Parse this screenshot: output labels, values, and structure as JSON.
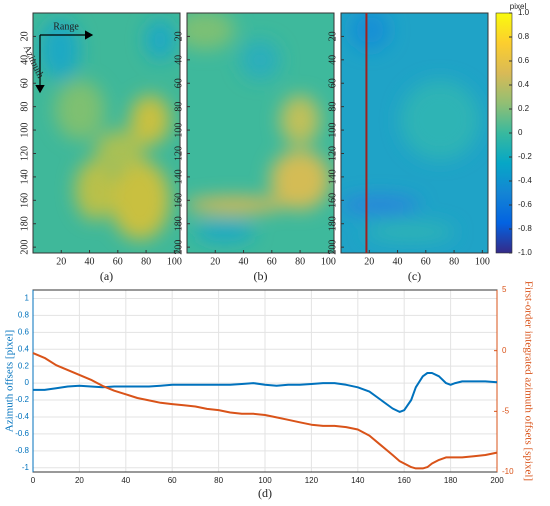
{
  "chart_data": [
    {
      "type": "heatmap",
      "caption": "(a)",
      "annotations": [
        "Range",
        "Azimuth"
      ],
      "xlim": [
        0,
        104
      ],
      "xticks": [
        20,
        40,
        60,
        80,
        100
      ],
      "ylim": [
        0,
        205
      ],
      "yticks": [
        20,
        40,
        60,
        80,
        100,
        120,
        140,
        160,
        180,
        200
      ]
    },
    {
      "type": "heatmap",
      "caption": "(b)",
      "xlim": [
        0,
        104
      ],
      "xticks": [
        20,
        40,
        60,
        80,
        100
      ],
      "ylim": [
        0,
        205
      ],
      "yticks": [
        20,
        40,
        60,
        80,
        100,
        120,
        140,
        160,
        180,
        200
      ]
    },
    {
      "type": "heatmap",
      "caption": "(c)",
      "marker_x": 18,
      "marker_color": "#a0201c",
      "xlim": [
        0,
        104
      ],
      "xticks": [
        20,
        40,
        60,
        80,
        100
      ],
      "ylim": [
        0,
        205
      ],
      "yticks": [
        20,
        40,
        60,
        80,
        100,
        120,
        140,
        160,
        180,
        200
      ]
    },
    {
      "type": "colorbar",
      "title": "pixel",
      "ylim": [
        -1,
        1
      ],
      "yticks": [
        {
          "value": 1,
          "label": "1.0"
        },
        0.8,
        0.6,
        0.4,
        0.2,
        0,
        -0.2,
        -0.4,
        -0.6,
        -0.8,
        {
          "value": -1,
          "label": "-1.0"
        }
      ]
    },
    {
      "type": "line",
      "caption": "(d)",
      "ylabel": "Azimuth offsets [pixel]",
      "y2label": "First-order integrated azimuth offsets [spixel]",
      "grid": true,
      "xlim": [
        0,
        200
      ],
      "xticks": [
        0,
        20,
        40,
        60,
        80,
        100,
        120,
        140,
        160,
        180,
        200
      ],
      "ylim": [
        -1.05,
        1.1
      ],
      "yticks": [
        1,
        0.8,
        0.6,
        0.4,
        0.2,
        0,
        -0.2,
        -0.4,
        -0.6,
        -0.8,
        -1
      ],
      "y2lim": [
        -10,
        5
      ],
      "y2ticks": [
        5,
        0,
        -5,
        -10
      ],
      "x": [
        0,
        5,
        10,
        15,
        20,
        25,
        30,
        35,
        40,
        45,
        50,
        55,
        60,
        65,
        70,
        75,
        80,
        85,
        90,
        95,
        100,
        105,
        110,
        115,
        120,
        125,
        130,
        135,
        140,
        145,
        150,
        155,
        158,
        160,
        163,
        165,
        168,
        170,
        172,
        175,
        178,
        180,
        182,
        185,
        190,
        195,
        200
      ],
      "series": [
        {
          "name": "Azimuth offsets",
          "color": "#0072bd",
          "values": [
            -0.08,
            -0.08,
            -0.06,
            -0.04,
            -0.03,
            -0.04,
            -0.05,
            -0.04,
            -0.04,
            -0.04,
            -0.04,
            -0.03,
            -0.02,
            -0.02,
            -0.02,
            -0.02,
            -0.02,
            -0.02,
            -0.01,
            0.0,
            -0.02,
            -0.03,
            -0.02,
            -0.02,
            -0.01,
            0.0,
            0.0,
            -0.02,
            -0.05,
            -0.1,
            -0.2,
            -0.3,
            -0.34,
            -0.32,
            -0.2,
            -0.05,
            0.08,
            0.12,
            0.12,
            0.08,
            0.0,
            -0.02,
            0.0,
            0.02,
            0.02,
            0.02,
            0.01
          ]
        },
        {
          "name": "First-order integrated azimuth offsets",
          "color": "#d95319",
          "axis": "y2",
          "values": [
            -0.2,
            -0.6,
            -1.2,
            -1.6,
            -2.0,
            -2.4,
            -2.9,
            -3.3,
            -3.6,
            -3.9,
            -4.1,
            -4.3,
            -4.4,
            -4.5,
            -4.6,
            -4.8,
            -4.9,
            -5.1,
            -5.2,
            -5.2,
            -5.3,
            -5.5,
            -5.7,
            -5.9,
            -6.1,
            -6.2,
            -6.2,
            -6.3,
            -6.5,
            -7.0,
            -7.8,
            -8.6,
            -9.1,
            -9.3,
            -9.6,
            -9.7,
            -9.7,
            -9.6,
            -9.3,
            -9.0,
            -8.8,
            -8.8,
            -8.8,
            -8.8,
            -8.7,
            -8.6,
            -8.4
          ]
        }
      ]
    }
  ]
}
